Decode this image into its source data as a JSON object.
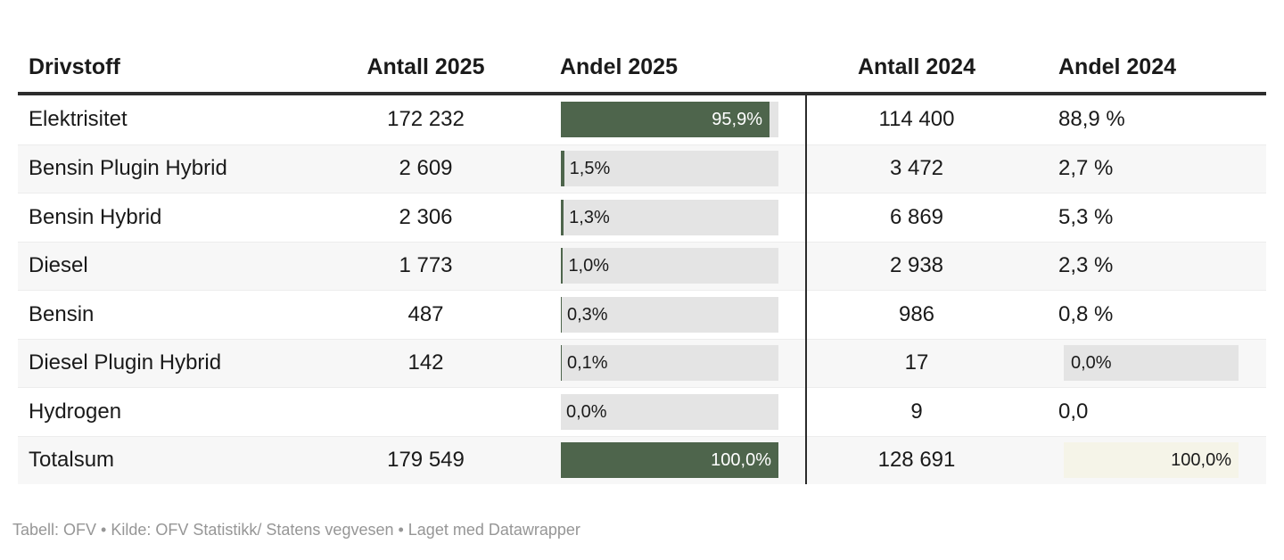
{
  "table": {
    "columns": [
      "Drivstoff",
      "Antall 2025",
      "Andel 2025",
      "Antall 2024",
      "Andel 2024"
    ],
    "rows": [
      {
        "drivstoff": "Elektrisitet",
        "antall_2025": "172 232",
        "andel_2025_pct": 95.9,
        "andel_2025_label": "95,9%",
        "antall_2024": "114 400",
        "andel_2024": "88,9 %",
        "andel_2024_style": "plain"
      },
      {
        "drivstoff": "Bensin Plugin Hybrid",
        "antall_2025": "2 609",
        "andel_2025_pct": 1.5,
        "andel_2025_label": "1,5%",
        "antall_2024": "3 472",
        "andel_2024": "2,7 %",
        "andel_2024_style": "plain"
      },
      {
        "drivstoff": "Bensin Hybrid",
        "antall_2025": "2 306",
        "andel_2025_pct": 1.3,
        "andel_2025_label": "1,3%",
        "antall_2024": "6 869",
        "andel_2024": "5,3 %",
        "andel_2024_style": "plain"
      },
      {
        "drivstoff": "Diesel",
        "antall_2025": "1 773",
        "andel_2025_pct": 1.0,
        "andel_2025_label": "1,0%",
        "antall_2024": "2 938",
        "andel_2024": "2,3 %",
        "andel_2024_style": "plain"
      },
      {
        "drivstoff": "Bensin",
        "antall_2025": "487",
        "andel_2025_pct": 0.3,
        "andel_2025_label": "0,3%",
        "antall_2024": "986",
        "andel_2024": "0,8 %",
        "andel_2024_style": "plain"
      },
      {
        "drivstoff": "Diesel Plugin Hybrid",
        "antall_2025": "142",
        "andel_2025_pct": 0.1,
        "andel_2025_label": "0,1%",
        "antall_2024": "17",
        "andel_2024": "0,0%",
        "andel_2024_style": "bar-gray"
      },
      {
        "drivstoff": "Hydrogen",
        "antall_2025": "",
        "andel_2025_pct": 0.0,
        "andel_2025_label": "0,0%",
        "antall_2024": "9",
        "andel_2024": "0,0",
        "andel_2024_style": "plain"
      },
      {
        "drivstoff": "Totalsum",
        "antall_2025": "179 549",
        "andel_2025_pct": 100.0,
        "andel_2025_label": "100,0%",
        "antall_2024": "128 691",
        "andel_2024": "100,0%",
        "andel_2024_style": "bar-cream"
      }
    ]
  },
  "footer": {
    "attribution": "Tabell: OFV • Kilde: OFV Statistikk/ Statens vegvesen • Laget med Datawrapper"
  },
  "colors": {
    "accent_green": "#4e654c",
    "bar_track_gray": "#e4e4e4",
    "row_stripe": "#f7f7f7",
    "header_rule": "#2d2d2d",
    "column_divider": "#2b2b2b",
    "total_bar_cream": "#f5f4e8",
    "footer_text": "#969696",
    "body_text": "#1a1a1a"
  },
  "chart_data": {
    "type": "table",
    "title": "",
    "columns": [
      "Drivstoff",
      "Antall 2025",
      "Andel 2025 (%)",
      "Antall 2024",
      "Andel 2024 (%)"
    ],
    "rows": [
      [
        "Elektrisitet",
        172232,
        95.9,
        114400,
        88.9
      ],
      [
        "Bensin Plugin Hybrid",
        2609,
        1.5,
        3472,
        2.7
      ],
      [
        "Bensin Hybrid",
        2306,
        1.3,
        6869,
        5.3
      ],
      [
        "Diesel",
        1773,
        1.0,
        2938,
        2.3
      ],
      [
        "Bensin",
        487,
        0.3,
        986,
        0.8
      ],
      [
        "Diesel Plugin Hybrid",
        142,
        0.1,
        17,
        0.0
      ],
      [
        "Hydrogen",
        null,
        0.0,
        9,
        0.0
      ],
      [
        "Totalsum",
        179549,
        100.0,
        128691,
        100.0
      ]
    ],
    "bar_column": "Andel 2025",
    "bar_axis_range": [
      0,
      100
    ],
    "legend_position": "none",
    "grid": false
  }
}
